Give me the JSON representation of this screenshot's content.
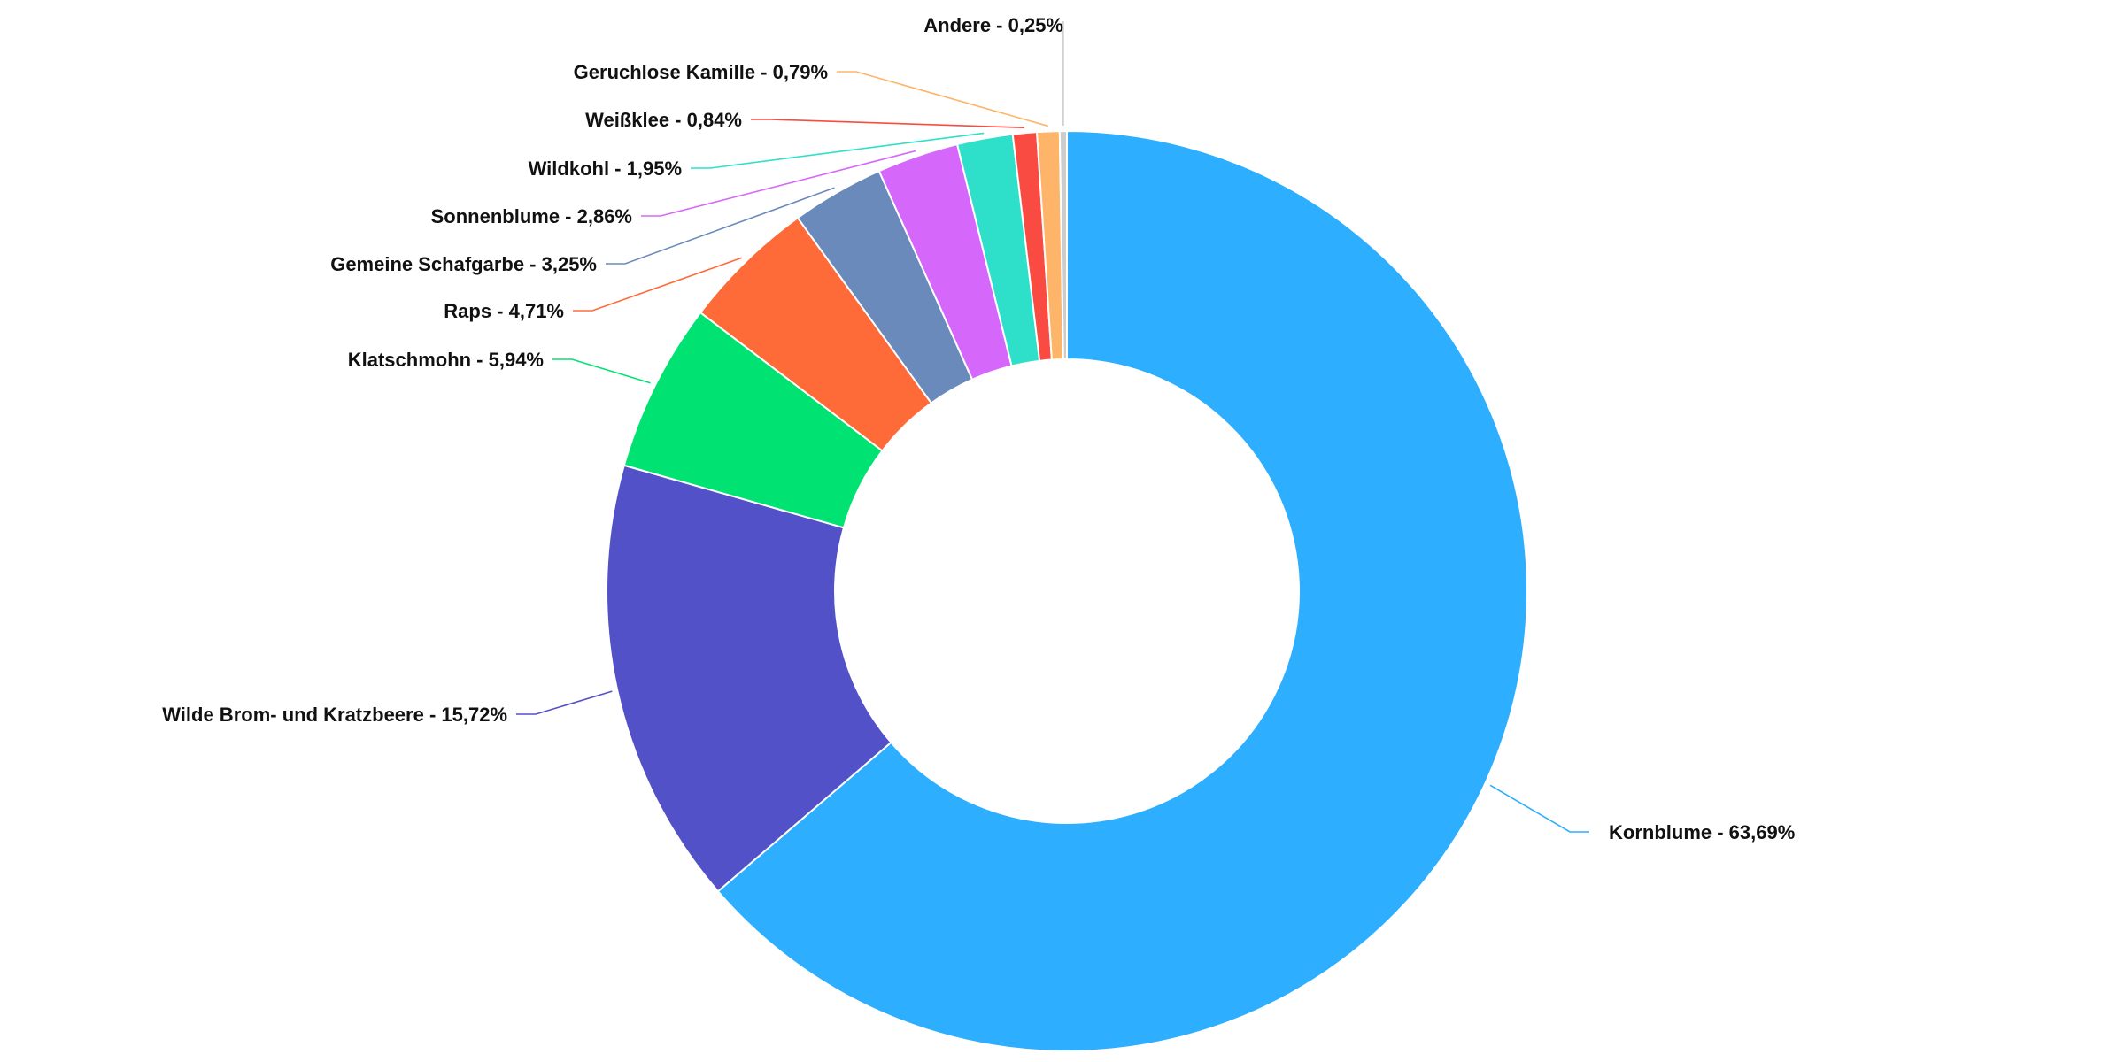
{
  "chart_data": {
    "type": "pie",
    "variant": "donut",
    "label_separator": " - ",
    "slices": [
      {
        "name": "Kornblume",
        "value": 63.69,
        "value_label": "63,69%",
        "color": "#2EAEFF"
      },
      {
        "name": "Wilde Brom- und Kratzbeere",
        "value": 15.72,
        "value_label": "15,72%",
        "color": "#5351C8"
      },
      {
        "name": "Klatschmohn",
        "value": 5.94,
        "value_label": "5,94%",
        "color": "#00E272"
      },
      {
        "name": "Raps",
        "value": 4.71,
        "value_label": "4,71%",
        "color": "#FF6B38"
      },
      {
        "name": "Gemeine Schafgarbe",
        "value": 3.25,
        "value_label": "3,25%",
        "color": "#6B8ABC"
      },
      {
        "name": "Sonnenblume",
        "value": 2.86,
        "value_label": "2,86%",
        "color": "#D568FB"
      },
      {
        "name": "Wildkohl",
        "value": 1.95,
        "value_label": "1,95%",
        "color": "#2EE0CA"
      },
      {
        "name": "Weißklee",
        "value": 0.84,
        "value_label": "0,84%",
        "color": "#FA4B42"
      },
      {
        "name": "Geruchlose Kamille",
        "value": 0.79,
        "value_label": "0,79%",
        "color": "#FEB56A"
      },
      {
        "name": "Andere",
        "value": 0.25,
        "value_label": "0,25%",
        "color": "#CCCCCC"
      }
    ]
  }
}
